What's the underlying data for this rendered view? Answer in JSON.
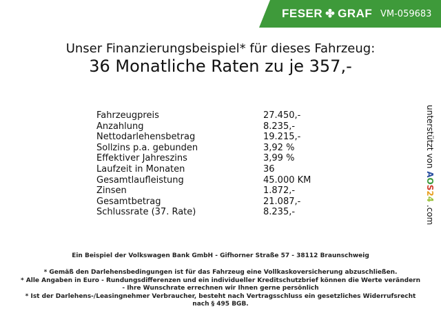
{
  "header": {
    "brand_left": "FESER",
    "brand_right": "GRAF",
    "vehicle_id": "VM-059683",
    "brand_color": "#3e9a3a"
  },
  "title": {
    "line1": "Unser Finanzierungsbeispiel* für dieses Fahrzeug:",
    "line2": "36 Monatliche Raten zu je 357,-"
  },
  "rows": [
    {
      "label": "Fahrzeugpreis",
      "value": "27.450,-"
    },
    {
      "label": "Anzahlung",
      "value": "8.235,-"
    },
    {
      "label": "Nettodarlehensbetrag",
      "value": "19.215,-"
    },
    {
      "label": "Sollzins p.a. gebunden",
      "value": "3,92 %"
    },
    {
      "label": "Effektiver Jahreszins",
      "value": "3,99 %"
    },
    {
      "label": "Laufzeit in Monaten",
      "value": "36"
    },
    {
      "label": "Gesamtlaufleistung",
      "value": "45.000 KM"
    },
    {
      "label": "Zinsen",
      "value": "1.872,-"
    },
    {
      "label": "Gesamtbetrag",
      "value": "21.087,-"
    },
    {
      "label": "Schlussrate (37. Rate)",
      "value": "8.235,-"
    }
  ],
  "side": {
    "prefix": "unterstützt von",
    "logo": [
      "A",
      "O",
      "S",
      "2",
      "4"
    ],
    "suffix": ".com"
  },
  "footer": {
    "bank": "Ein Beispiel der Volkswagen Bank GmbH - Gifhorner Straße 57 - 38112 Braunschweig",
    "note1": "* Gemäß den Darlehensbedingungen ist für das Fahrzeug eine Vollkaskoversicherung abzuschließen.",
    "note2a": "* Alle Angaben in Euro - Rundungsdifferenzen und ein individueller Kreditschutzbrief können die Werte verändern",
    "note2b": "- Ihre Wunschrate errechnen wir Ihnen gerne persönlich",
    "note3a": "* Ist der Darlehens-/Leasingnehmer Verbraucher, besteht nach Vertragsschluss ein gesetzliches Widerrufsrecht",
    "note3b": "nach § 495 BGB."
  }
}
